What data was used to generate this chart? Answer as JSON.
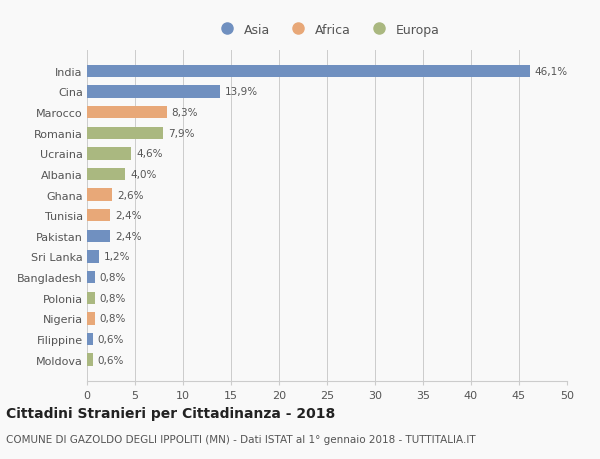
{
  "countries": [
    "India",
    "Cina",
    "Marocco",
    "Romania",
    "Ucraina",
    "Albania",
    "Ghana",
    "Tunisia",
    "Pakistan",
    "Sri Lanka",
    "Bangladesh",
    "Polonia",
    "Nigeria",
    "Filippine",
    "Moldova"
  ],
  "values": [
    46.1,
    13.9,
    8.3,
    7.9,
    4.6,
    4.0,
    2.6,
    2.4,
    2.4,
    1.2,
    0.8,
    0.8,
    0.8,
    0.6,
    0.6
  ],
  "labels": [
    "46,1%",
    "13,9%",
    "8,3%",
    "7,9%",
    "4,6%",
    "4,0%",
    "2,6%",
    "2,4%",
    "2,4%",
    "1,2%",
    "0,8%",
    "0,8%",
    "0,8%",
    "0,6%",
    "0,6%"
  ],
  "continents": [
    "Asia",
    "Asia",
    "Africa",
    "Europa",
    "Europa",
    "Europa",
    "Africa",
    "Africa",
    "Asia",
    "Asia",
    "Asia",
    "Europa",
    "Africa",
    "Asia",
    "Europa"
  ],
  "colors": {
    "Asia": "#7090c0",
    "Africa": "#e8a878",
    "Europa": "#aab880"
  },
  "xlim": [
    0,
    50
  ],
  "xticks": [
    0,
    5,
    10,
    15,
    20,
    25,
    30,
    35,
    40,
    45,
    50
  ],
  "title": "Cittadini Stranieri per Cittadinanza - 2018",
  "subtitle": "COMUNE DI GAZOLDO DEGLI IPPOLITI (MN) - Dati ISTAT al 1° gennaio 2018 - TUTTITALIA.IT",
  "background_color": "#f9f9f9",
  "grid_color": "#cccccc",
  "bar_height": 0.6,
  "label_fontsize": 7.5,
  "title_fontsize": 10,
  "subtitle_fontsize": 7.5,
  "ytick_fontsize": 8,
  "xtick_fontsize": 8,
  "legend_fontsize": 9
}
